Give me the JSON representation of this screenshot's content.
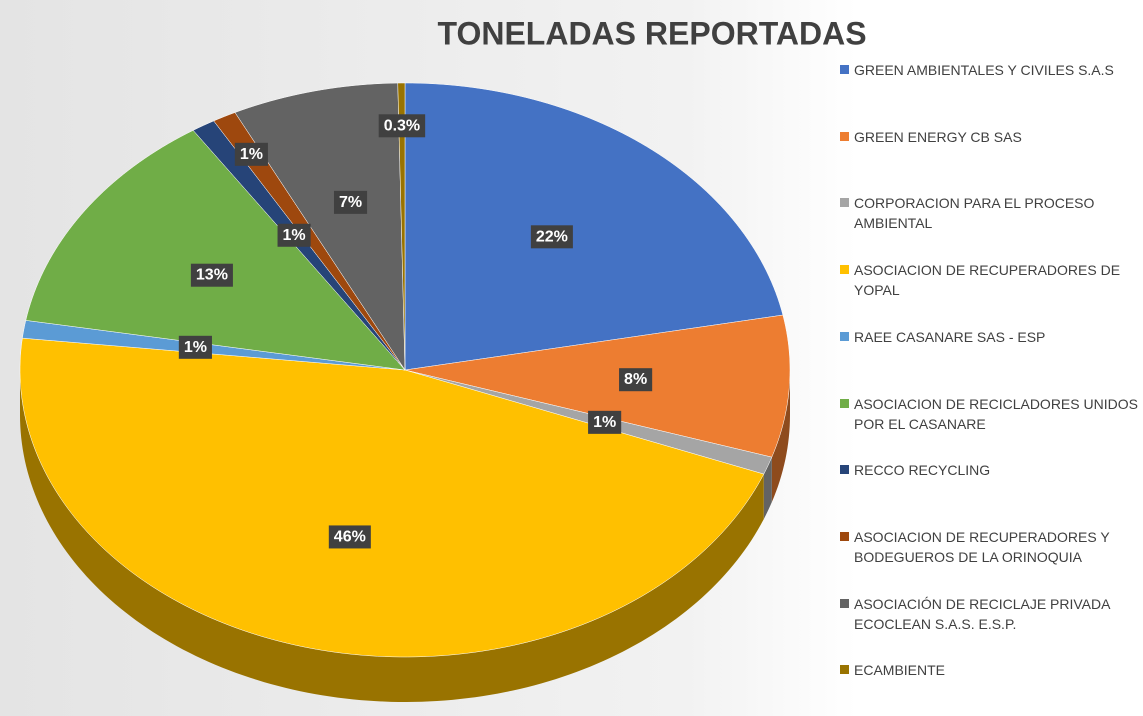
{
  "chart_data": {
    "type": "pie",
    "title": "TONELADAS REPORTADAS",
    "categories": [
      "GREEN AMBIENTALES Y CIVILES S.A.S",
      "GREEN ENERGY CB SAS",
      "CORPORACION PARA EL PROCESO AMBIENTAL",
      "ASOCIACION DE RECUPERADORES DE YOPAL",
      "RAEE CASANARE SAS - ESP",
      "ASOCIACION DE RECICLADORES UNIDOS POR EL CASANARE",
      "RECCO RECYCLING",
      "ASOCIACION DE RECUPERADORES Y BODEGUEROS DE LA ORINOQUIA",
      "ASOCIACIÓN DE RECICLAJE PRIVADA ECOCLEAN S.A.S.  E.S.P.",
      "ECAMBIENTE"
    ],
    "values": [
      22,
      8,
      1,
      46,
      1,
      13,
      1,
      1,
      7,
      0.3
    ],
    "value_labels": [
      "22%",
      "8%",
      "1%",
      "46%",
      "1%",
      "13%",
      "1%",
      "1%",
      "7%",
      "0.3%"
    ],
    "colors": [
      "#4472c4",
      "#ed7d31",
      "#a5a5a5",
      "#ffc000",
      "#5b9bd5",
      "#70ad47",
      "#264478",
      "#9e480e",
      "#636363",
      "#997300"
    ],
    "legend": "right"
  }
}
